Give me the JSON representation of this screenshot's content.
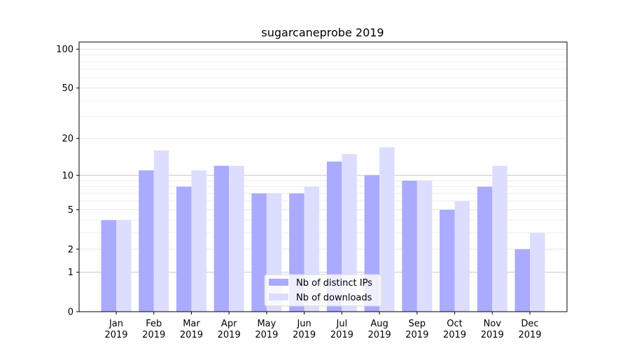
{
  "chart_data": {
    "type": "bar",
    "title": "sugarcaneprobe 2019",
    "xlabel": "",
    "ylabel": "",
    "yscale": "symlog (log10(1+y))",
    "ylim": [
      0,
      110
    ],
    "yticks": [
      0,
      1,
      2,
      5,
      10,
      20,
      50,
      100
    ],
    "categories": [
      "Jan\n2019",
      "Feb\n2019",
      "Mar\n2019",
      "Apr\n2019",
      "May\n2019",
      "Jun\n2019",
      "Jul\n2019",
      "Aug\n2019",
      "Sep\n2019",
      "Oct\n2019",
      "Nov\n2019",
      "Dec\n2019"
    ],
    "category_months": [
      "Jan",
      "Feb",
      "Mar",
      "Apr",
      "May",
      "Jun",
      "Jul",
      "Aug",
      "Sep",
      "Oct",
      "Nov",
      "Dec"
    ],
    "category_year": "2019",
    "series": [
      {
        "name": "Nb of distinct IPs",
        "color": "#aaaaff",
        "values": [
          4,
          11,
          8,
          12,
          7,
          7,
          13,
          10,
          9,
          5,
          8,
          2
        ]
      },
      {
        "name": "Nb of downloads",
        "color": "#ddddff",
        "values": [
          4,
          16,
          11,
          12,
          7,
          8,
          15,
          17,
          9,
          6,
          12,
          3
        ]
      }
    ],
    "grid": true,
    "legend": "bottom-center"
  }
}
